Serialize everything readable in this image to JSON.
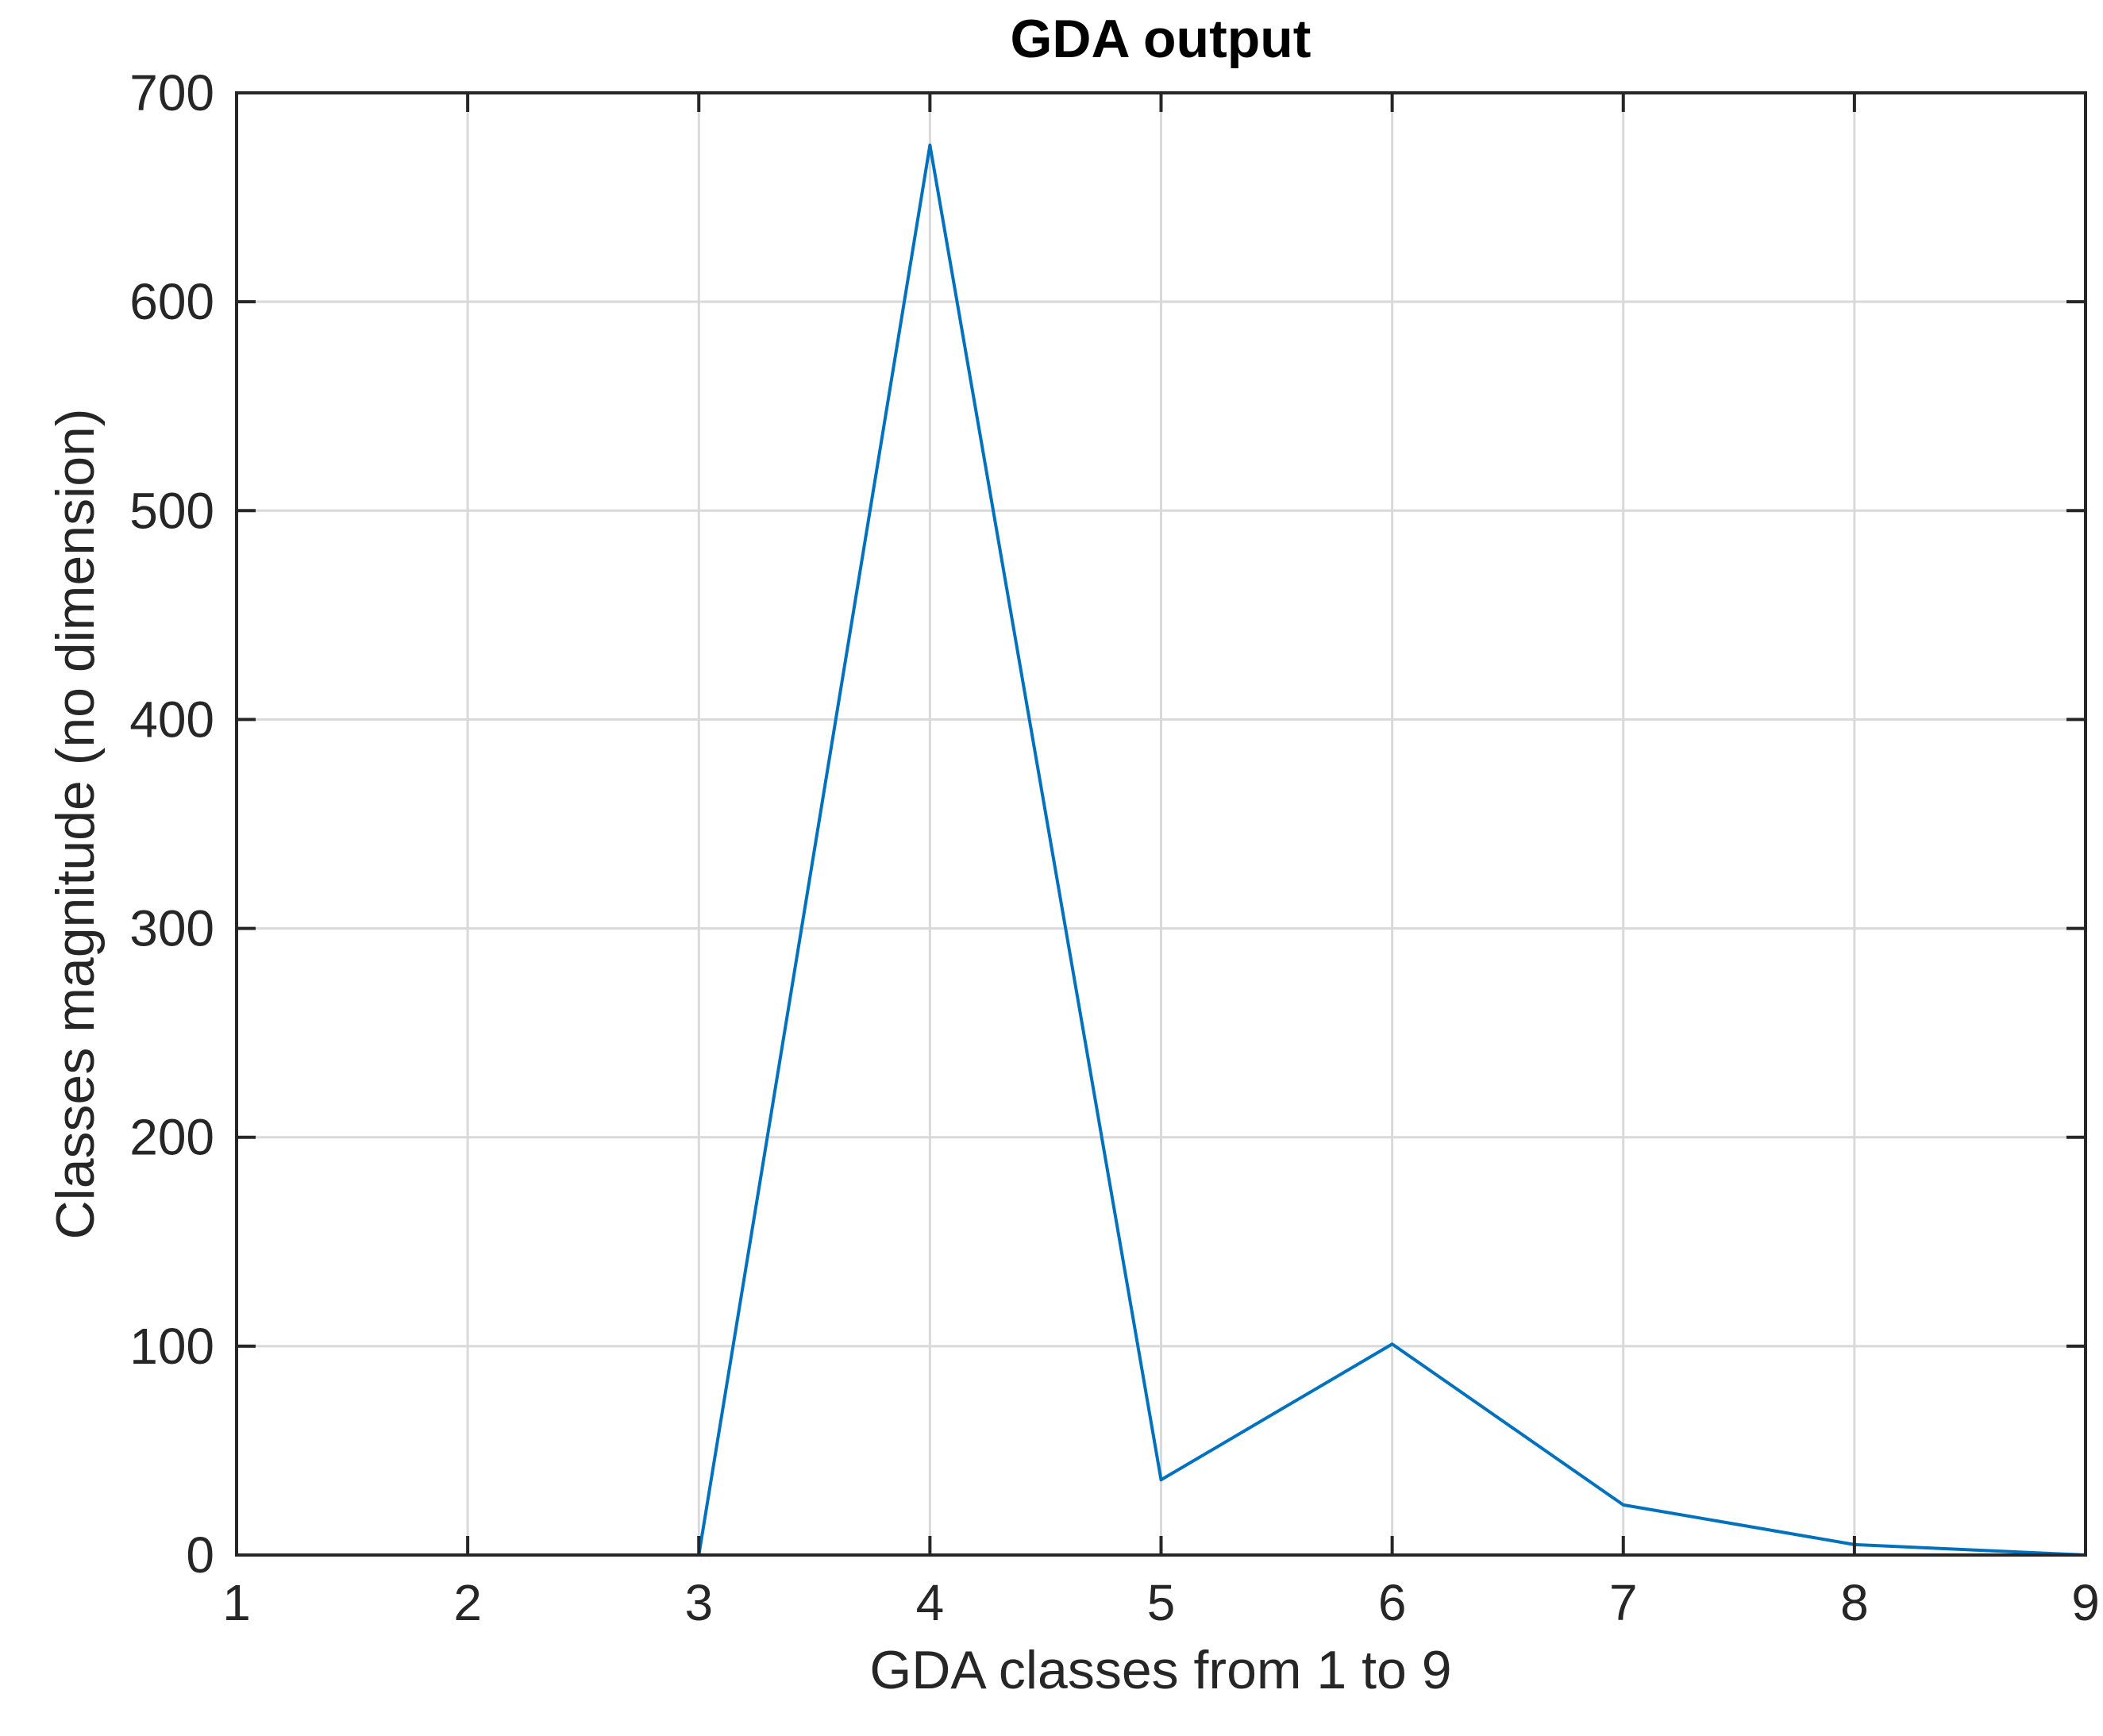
{
  "chart_data": {
    "type": "line",
    "title": "GDA output",
    "xlabel": "GDA classes from 1 to 9",
    "ylabel": "Classes magnitude (no dimension)",
    "xlim": [
      1,
      9
    ],
    "ylim": [
      0,
      700
    ],
    "xticks": [
      1,
      2,
      3,
      4,
      5,
      6,
      7,
      8,
      9
    ],
    "yticks": [
      0,
      100,
      200,
      300,
      400,
      500,
      600,
      700
    ],
    "grid": true,
    "series": [
      {
        "color": "#0072bd",
        "x": [
          1,
          2,
          3,
          4,
          5,
          6,
          7,
          8,
          9
        ],
        "y": [
          0,
          0,
          0,
          675,
          36,
          101,
          24,
          5,
          0
        ]
      }
    ]
  }
}
